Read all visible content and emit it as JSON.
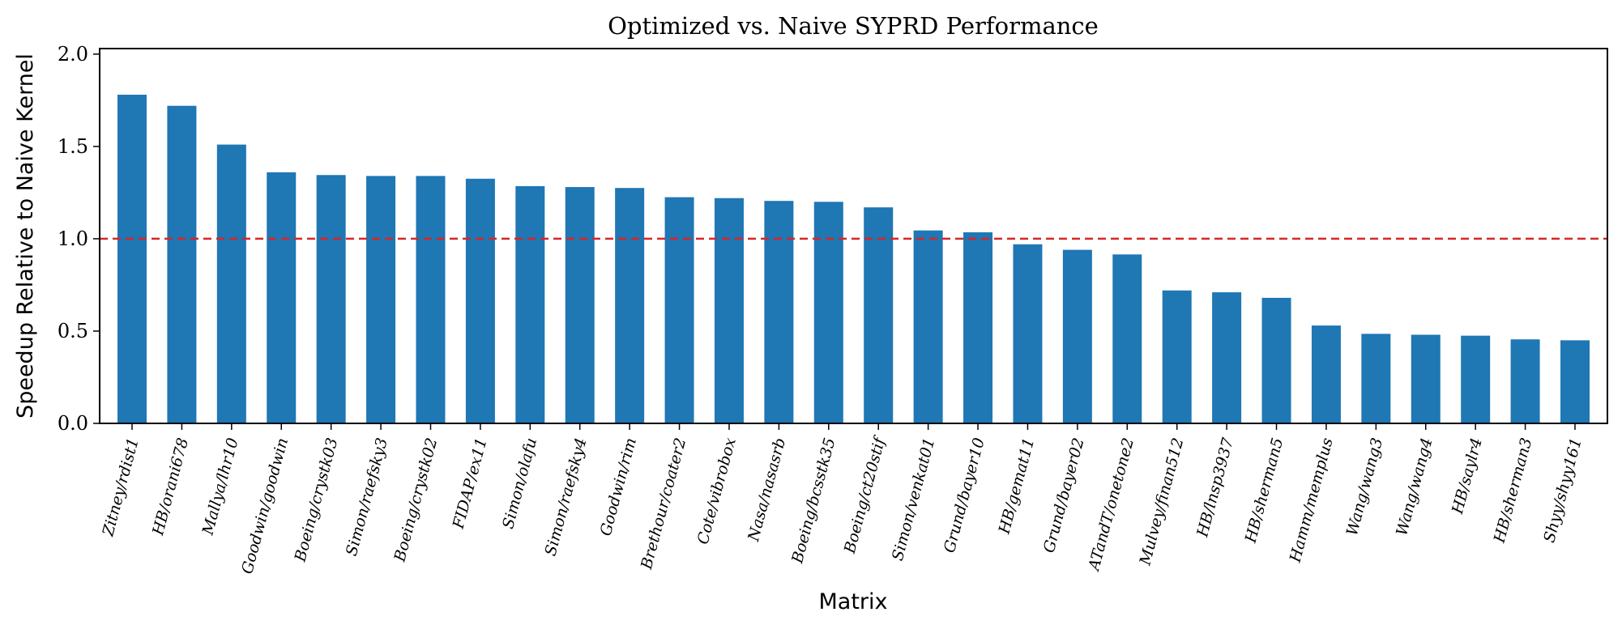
{
  "chart_data": {
    "type": "bar",
    "title": "Optimized vs. Naive SYPRD Performance",
    "xlabel": "Matrix",
    "ylabel": "Speedup Relative to Naive Kernel",
    "categories": [
      "Zitney/rdist1",
      "HB/orani678",
      "Mallya/lhr10",
      "Goodwin/goodwin",
      "Boeing/crystk03",
      "Simon/raefsky3",
      "Boeing/crystk02",
      "FIDAP/ex11",
      "Simon/olafu",
      "Simon/raefsky4",
      "Goodwin/rim",
      "Brethour/coater2",
      "Cote/vibrobox",
      "Nasa/nasasrb",
      "Boeing/bcsstk35",
      "Boeing/ct20stif",
      "Simon/venkat01",
      "Grund/bayer10",
      "HB/gemat11",
      "Grund/bayer02",
      "ATandT/onetone2",
      "Mulvey/finan512",
      "HB/lnsp3937",
      "HB/sherman5",
      "Hamm/memplus",
      "Wang/wang3",
      "Wang/wang4",
      "HB/saylr4",
      "HB/sherman3",
      "Shyy/shyy161"
    ],
    "values": [
      1.78,
      1.72,
      1.51,
      1.36,
      1.345,
      1.34,
      1.34,
      1.325,
      1.285,
      1.28,
      1.275,
      1.225,
      1.22,
      1.205,
      1.2,
      1.17,
      1.045,
      1.035,
      0.97,
      0.94,
      0.915,
      0.72,
      0.71,
      0.68,
      0.53,
      0.485,
      0.48,
      0.475,
      0.455,
      0.45
    ],
    "ylim": [
      0,
      2.03
    ],
    "yticks": [
      "0.0",
      "0.5",
      "1.0",
      "1.5",
      "2.0"
    ],
    "reference_line": {
      "y": 1.0,
      "style": "dashed",
      "color": "#d62728"
    },
    "bar_color": "#1f77b4",
    "grid": false,
    "legend": "none"
  }
}
